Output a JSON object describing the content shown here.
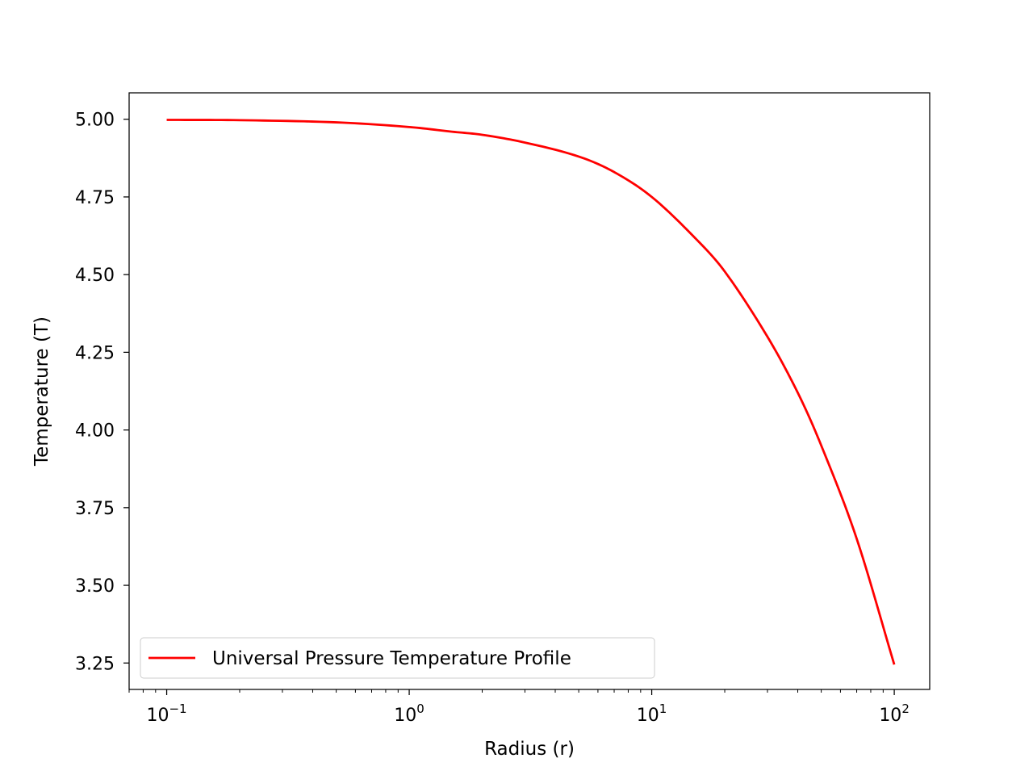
{
  "chart_data": {
    "type": "line",
    "xlabel": "Radius (r)",
    "ylabel": "Temperature (T)",
    "xscale": "log",
    "xlim": [
      0.07,
      140
    ],
    "ylim": [
      3.165,
      5.085
    ],
    "x_ticks": [
      {
        "value": 0.1,
        "base": "10",
        "exp": "−1"
      },
      {
        "value": 1,
        "base": "10",
        "exp": "0"
      },
      {
        "value": 10,
        "base": "10",
        "exp": "1"
      },
      {
        "value": 100,
        "base": "10",
        "exp": "2"
      }
    ],
    "y_ticks": [
      "5.00",
      "4.75",
      "4.50",
      "4.25",
      "4.00",
      "3.75",
      "3.50",
      "3.25"
    ],
    "grid": false,
    "legend": {
      "position": "lower-left",
      "entries": [
        "Universal Pressure Temperature Profile"
      ]
    },
    "series": [
      {
        "name": "Universal Pressure Temperature Profile",
        "color": "#ff0000",
        "x": [
          0.1,
          0.2,
          0.5,
          1,
          1.5,
          2,
          3,
          5,
          7,
          10,
          15,
          20,
          30,
          40,
          50,
          70,
          100
        ],
        "y": [
          4.998,
          4.997,
          4.99,
          4.975,
          4.96,
          4.95,
          4.925,
          4.88,
          4.83,
          4.75,
          4.62,
          4.51,
          4.3,
          4.12,
          3.95,
          3.65,
          3.245
        ]
      }
    ]
  }
}
